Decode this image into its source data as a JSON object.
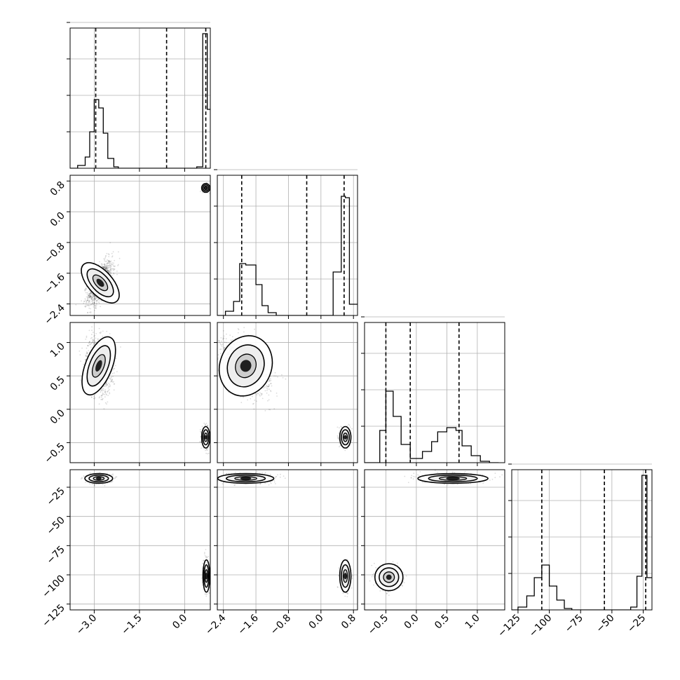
{
  "chart_data": {
    "type": "corner",
    "grid": true,
    "parameters": [
      {
        "xlim": [
          -3.8,
          0.85
        ],
        "xticks": [
          "−3.0",
          "−1.5",
          "0.0"
        ],
        "xtick_values": [
          -3.0,
          -1.5,
          0.0
        ],
        "quantiles": [
          -2.95,
          -0.6,
          0.7
        ],
        "histogram": {
          "edges": [
            -3.8,
            -3.55,
            -3.3,
            -3.15,
            -3.0,
            -2.85,
            -2.7,
            -2.55,
            -2.35,
            -2.2,
            -1.95,
            0.4,
            0.6,
            0.75,
            0.85
          ],
          "counts": [
            0.0,
            0.02,
            0.08,
            0.26,
            0.49,
            0.43,
            0.25,
            0.07,
            0.01,
            0.0,
            0.0,
            0.01,
            0.96,
            0.42
          ]
        }
      },
      {
        "xlim": [
          -2.55,
          0.9
        ],
        "xticks": [
          "−2.4",
          "−1.6",
          "−0.8",
          "0.0",
          "0.8"
        ],
        "xtick_values": [
          -2.4,
          -1.6,
          -0.8,
          0.0,
          0.8
        ],
        "yticks": [
          "0.8",
          "0.0",
          "−0.8",
          "−1.6",
          "−2.4"
        ],
        "ytick_values": [
          0.8,
          0.0,
          -0.8,
          -1.6,
          -2.4
        ],
        "quantiles": [
          -1.95,
          -0.35,
          0.57
        ],
        "histogram": {
          "edges": [
            -2.55,
            -2.35,
            -2.15,
            -2.0,
            -1.85,
            -1.6,
            -1.45,
            -1.3,
            -1.1,
            -0.9,
            -0.7,
            0.3,
            0.5,
            0.6,
            0.7,
            0.9
          ],
          "counts": [
            0.0,
            0.03,
            0.1,
            0.37,
            0.36,
            0.22,
            0.07,
            0.02,
            0.0,
            0.0,
            0.0,
            0.31,
            0.85,
            0.84,
            0.08
          ]
        }
      },
      {
        "xlim": [
          -0.85,
          1.45
        ],
        "xticks": [
          "−0.5",
          "0.0",
          "0.5",
          "1.0"
        ],
        "xtick_values": [
          -0.5,
          0.0,
          0.5,
          1.0
        ],
        "yticks": [
          "1.0",
          "0.5",
          "0.0",
          "−0.5"
        ],
        "ytick_values": [
          1.0,
          0.5,
          0.0,
          -0.5
        ],
        "quantiles": [
          -0.5,
          -0.1,
          0.7
        ],
        "histogram": {
          "edges": [
            -0.85,
            -0.6,
            -0.5,
            -0.38,
            -0.25,
            -0.1,
            0.0,
            0.1,
            0.25,
            0.35,
            0.5,
            0.65,
            0.75,
            0.9,
            1.05,
            1.2,
            1.35
          ],
          "counts": [
            0.0,
            0.23,
            0.51,
            0.33,
            0.13,
            0.03,
            0.03,
            0.08,
            0.15,
            0.22,
            0.25,
            0.23,
            0.12,
            0.05,
            0.01,
            0.0
          ]
        }
      },
      {
        "xlim": [
          -130,
          -18
        ],
        "xticks": [
          "−125",
          "−100",
          "−75",
          "−50",
          "−25"
        ],
        "xtick_values": [
          -125,
          -100,
          -75,
          -50,
          -25
        ],
        "yticks": [
          "−25",
          "−50",
          "−75",
          "−100",
          "−125"
        ],
        "ytick_values": [
          -25,
          -50,
          -75,
          -100,
          -125
        ],
        "quantiles": [
          -106,
          -56,
          -23
        ],
        "histogram": {
          "edges": [
            -130,
            -125,
            -118,
            -112,
            -106,
            -100,
            -94,
            -88,
            -82,
            -76,
            -35,
            -30,
            -26,
            -22,
            -18
          ],
          "counts": [
            0.0,
            0.02,
            0.1,
            0.23,
            0.32,
            0.17,
            0.07,
            0.01,
            0.0,
            0.0,
            0.02,
            0.24,
            0.96,
            0.23
          ]
        }
      }
    ],
    "pairs": [
      {
        "row": 1,
        "col": 0,
        "ylim": [
          -2.7,
          0.95
        ],
        "modes": [
          {
            "mean": [
              -2.8,
              -1.85
            ],
            "sd": [
              0.2,
              0.28
            ],
            "rho": 0.6,
            "n": 1300
          },
          {
            "mean": [
              0.7,
              0.62
            ],
            "sd": [
              0.06,
              0.05
            ],
            "rho": 0,
            "n": 260
          }
        ]
      },
      {
        "row": 2,
        "col": 0,
        "ylim": [
          -0.8,
          1.3
        ],
        "modes": [
          {
            "mean": [
              -2.85,
              0.65
            ],
            "sd": [
              0.2,
              0.2
            ],
            "rho": -0.2,
            "n": 1300
          },
          {
            "mean": [
              0.7,
              -0.42
            ],
            "sd": [
              0.06,
              0.07
            ],
            "rho": 0,
            "n": 500
          }
        ]
      },
      {
        "row": 2,
        "col": 1,
        "ylim": [
          -0.8,
          1.3
        ],
        "modes": [
          {
            "mean": [
              -1.85,
              0.65
            ],
            "sd": [
              0.3,
              0.2
            ],
            "rho": -0.4,
            "n": 1300
          },
          {
            "mean": [
              0.6,
              -0.42
            ],
            "sd": [
              0.06,
              0.07
            ],
            "rho": 0,
            "n": 500
          }
        ]
      },
      {
        "row": 3,
        "col": 0,
        "ylim": [
          -130,
          -10
        ],
        "modes": [
          {
            "mean": [
              -2.85,
              -17.5
            ],
            "sd": [
              0.2,
              1.8
            ],
            "rho": 0,
            "n": 900
          },
          {
            "mean": [
              0.72,
              -101
            ],
            "sd": [
              0.05,
              6
            ],
            "rho": 0,
            "n": 500
          }
        ]
      },
      {
        "row": 3,
        "col": 1,
        "ylim": [
          -130,
          -10
        ],
        "modes": [
          {
            "mean": [
              -1.85,
              -17.5
            ],
            "sd": [
              0.3,
              1.8
            ],
            "rho": 0,
            "n": 900
          },
          {
            "mean": [
              0.6,
              -101
            ],
            "sd": [
              0.06,
              6
            ],
            "rho": 0,
            "n": 500
          }
        ]
      },
      {
        "row": 3,
        "col": 2,
        "ylim": [
          -130,
          -10
        ],
        "modes": [
          {
            "mean": [
              0.6,
              -17.5
            ],
            "sd": [
              0.25,
              1.8
            ],
            "rho": 0,
            "n": 900
          },
          {
            "mean": [
              -0.45,
              -102
            ],
            "sd": [
              0.1,
              5
            ],
            "rho": 0,
            "n": 500
          }
        ]
      }
    ]
  }
}
